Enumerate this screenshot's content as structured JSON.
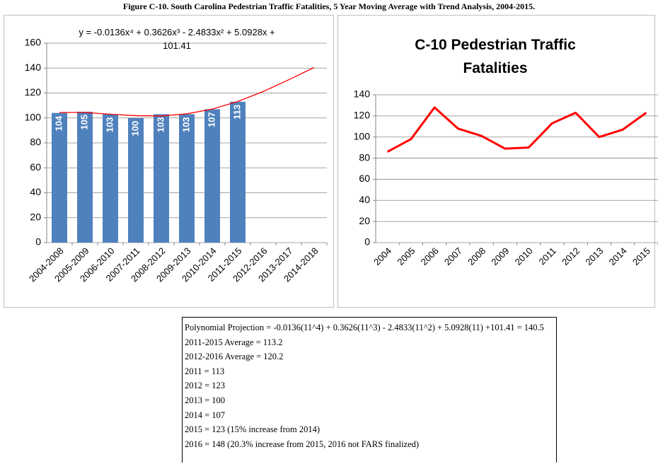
{
  "title": "Figure C-10. South Carolina Pedestrian Traffic Fatalities, 5 Year Moving Average with Trend Analysis, 2004-2015.",
  "chart_data": [
    {
      "type": "bar",
      "annotation": [
        "y = -0.0136x⁴ + 0.3626x³ - 2.4833x² + 5.0928x +",
        "101.41"
      ],
      "categories": [
        "2004-2008",
        "2005-2009",
        "2006-2010",
        "2007-2011",
        "2008-2012",
        "2009-2013",
        "2010-2014",
        "2011-2015",
        "2012-2016",
        "2013-2017",
        "2014-2018"
      ],
      "values": [
        104,
        105,
        103,
        100,
        103,
        103,
        107,
        113,
        null,
        null,
        null
      ],
      "color": "#4f81bd",
      "trendline": {
        "color": "#ff0000",
        "values": [
          104.4,
          104.4,
          103.0,
          101.8,
          101.6,
          103.3,
          107.1,
          113.2,
          121.2,
          130.6,
          140.5
        ]
      },
      "ylim": [
        0,
        160
      ],
      "yticks": [
        0,
        20,
        40,
        60,
        80,
        100,
        120,
        140,
        160
      ],
      "grid": true
    },
    {
      "type": "line",
      "title": [
        "C-10 Pedestrian Traffic",
        "Fatalities"
      ],
      "categories": [
        "2004",
        "2005",
        "2006",
        "2007",
        "2008",
        "2009",
        "2010",
        "2011",
        "2012",
        "2013",
        "2014",
        "2015"
      ],
      "values": [
        86,
        98,
        128,
        108,
        101,
        89,
        90,
        113,
        123,
        100,
        107,
        123
      ],
      "color": "#ff0000",
      "ylim": [
        0,
        140
      ],
      "yticks": [
        0,
        20,
        40,
        60,
        80,
        100,
        120,
        140
      ],
      "grid": true
    }
  ],
  "notes": [
    "Polynomial Projection = -0.0136(11^4) + 0.3626(11^3) - 2.4833(11^2) + 5.0928(11) +101.41 = 140.5",
    "2011-2015 Average = 113.2",
    "2012-2016 Average = 120.2",
    "2011 = 113",
    "2012 = 123",
    "2013 = 100",
    "2014 = 107",
    "2015 = 123 (15% increase from 2014)",
    "2016 = 148 (20.3% increase from 2015, 2016 not FARS finalized)"
  ]
}
